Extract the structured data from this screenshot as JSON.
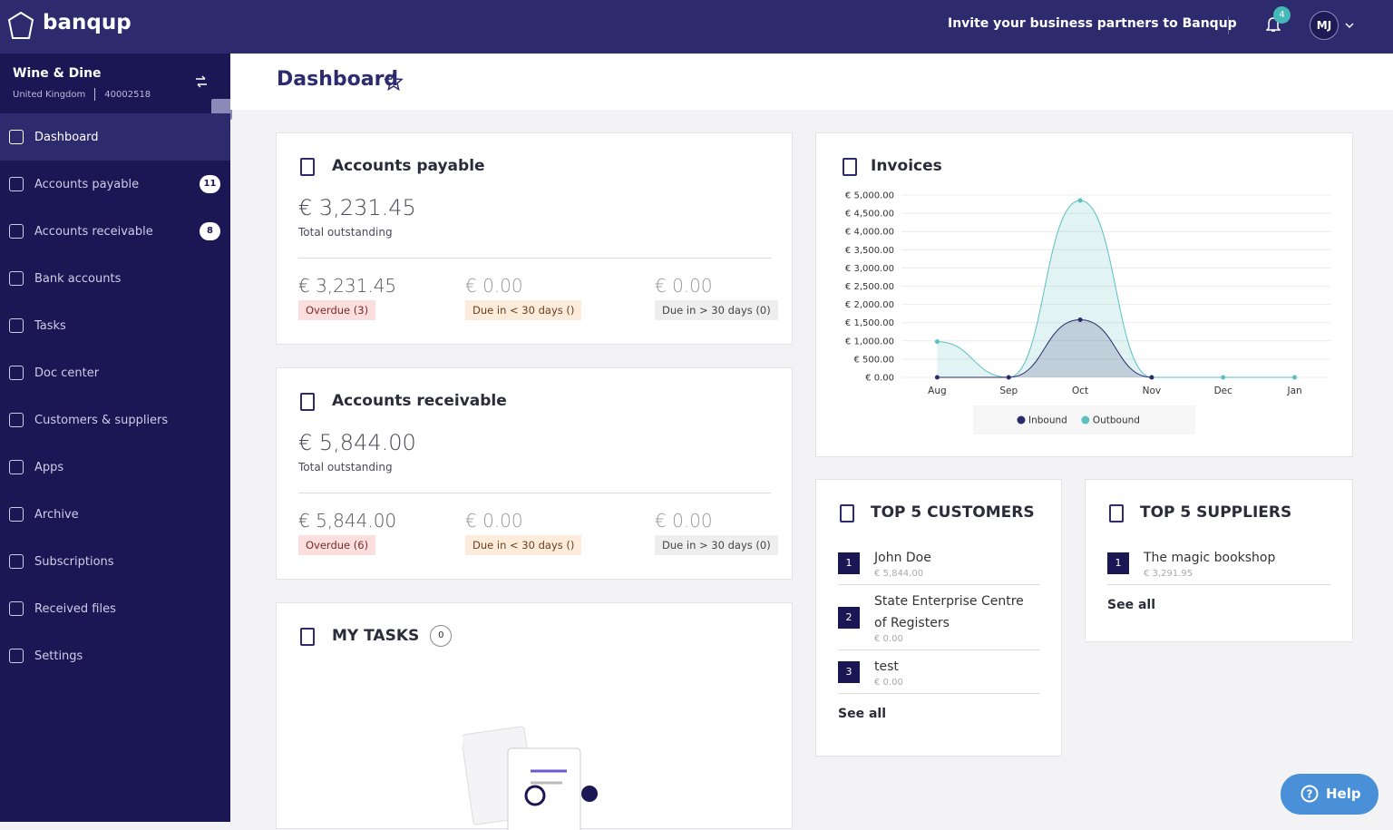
{
  "header": {
    "brand": "banqup",
    "invite": "Invite your business partners to Banqup",
    "notifications": "4",
    "user": "MJ"
  },
  "company": {
    "name": "Wine & Dine",
    "country": "United Kingdom",
    "id": "40002518"
  },
  "nav": [
    {
      "label": "Dashboard"
    },
    {
      "label": "Accounts payable",
      "badge": "11"
    },
    {
      "label": "Accounts receivable",
      "badge": "8"
    },
    {
      "label": "Bank accounts"
    },
    {
      "label": "Tasks"
    },
    {
      "label": "Doc center"
    },
    {
      "label": "Customers & suppliers"
    },
    {
      "label": "Apps"
    },
    {
      "label": "Archive"
    },
    {
      "label": "Subscriptions"
    },
    {
      "label": "Received files"
    },
    {
      "label": "Settings"
    }
  ],
  "page_title": "Dashboard",
  "payable": {
    "title": "Accounts payable",
    "total": "€ 3,231.45",
    "total_label": "Total outstanding",
    "buckets": [
      {
        "amount": "€ 3,231.45",
        "label": "Overdue (3)"
      },
      {
        "amount": "€ 0.00",
        "label": "Due in < 30 days ()"
      },
      {
        "amount": "€ 0.00",
        "label": "Due in > 30 days (0)"
      }
    ]
  },
  "receivable": {
    "title": "Accounts receivable",
    "total": "€ 5,844.00",
    "total_label": "Total outstanding",
    "buckets": [
      {
        "amount": "€ 5,844.00",
        "label": "Overdue (6)"
      },
      {
        "amount": "€ 0.00",
        "label": "Due in < 30 days ()"
      },
      {
        "amount": "€ 0.00",
        "label": "Due in > 30 days (0)"
      }
    ]
  },
  "tasks": {
    "title": "MY TASKS",
    "count": "0"
  },
  "chart_data": {
    "type": "area",
    "title": "Invoices",
    "categories": [
      "Aug",
      "Sep",
      "Oct",
      "Nov",
      "Dec",
      "Jan"
    ],
    "series": [
      {
        "name": "Inbound",
        "color": "#2b2a6b",
        "values": [
          0,
          0,
          1580,
          0,
          null,
          null
        ]
      },
      {
        "name": "Outbound",
        "color": "#5cbfc2",
        "values": [
          980,
          0,
          4850,
          0,
          0,
          0
        ]
      }
    ],
    "ylim": [
      0,
      5000
    ],
    "yticks": [
      {
        "value": 0,
        "label": "€ 0.00"
      },
      {
        "value": 500,
        "label": "€ 500.00"
      },
      {
        "value": 1000,
        "label": "€ 1,000.00"
      },
      {
        "value": 1500,
        "label": "€ 1,500.00"
      },
      {
        "value": 2000,
        "label": "€ 2,000.00"
      },
      {
        "value": 2500,
        "label": "€ 2,500.00"
      },
      {
        "value": 3000,
        "label": "€ 3,000.00"
      },
      {
        "value": 3500,
        "label": "€ 3,500.00"
      },
      {
        "value": 4000,
        "label": "€ 4,000.00"
      },
      {
        "value": 4500,
        "label": "€ 4,500.00"
      },
      {
        "value": 5000,
        "label": "€ 5,000.00"
      }
    ],
    "grid": true,
    "legend": "bottom"
  },
  "customers": {
    "title": "TOP 5 CUSTOMERS",
    "see_all": "See all",
    "items": [
      {
        "rank": 1,
        "name": "John Doe",
        "amount": "€ 5,844.00"
      },
      {
        "rank": 2,
        "name": "State Enterprise Centre of Registers",
        "amount": "€ 0.00"
      },
      {
        "rank": 3,
        "name": "test",
        "amount": "€ 0.00"
      }
    ]
  },
  "suppliers": {
    "title": "TOP 5 SUPPLIERS",
    "see_all": "See all",
    "items": [
      {
        "rank": 1,
        "name": "The magic bookshop",
        "amount": "€ 3,291.95"
      }
    ]
  },
  "help": "Help"
}
